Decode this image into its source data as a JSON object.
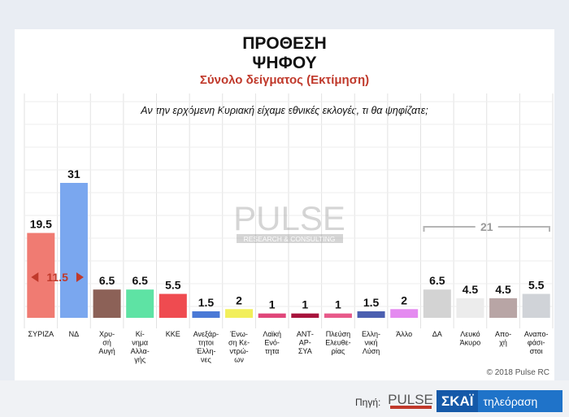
{
  "header": {
    "title_line1": "ΠΡΟΘΕΣΗ",
    "title_line2": "ΨΗΦΟΥ",
    "subtitle": "Σύνολο δείγματος   (Εκτίμηση)",
    "question": "Αν την ερχόμενη Κυριακή είχαμε εθνικές εκλογές, τι θα ψηφίζατε;"
  },
  "watermark": {
    "main": "PULSE",
    "sub": "RESEARCH & CONSULTING"
  },
  "copyright": "© 2018 Pulse RC",
  "footer": {
    "source_label": "Πηγή:",
    "pulse_logo": "PULSE",
    "skai_a": "ΣΚΑΪ",
    "skai_b": "τηλεόραση"
  },
  "chart_data": {
    "type": "bar",
    "categories": [
      [
        "ΣΥΡΙΖΑ"
      ],
      [
        "ΝΔ"
      ],
      [
        "Χρυ-",
        "σή",
        "Αυγή"
      ],
      [
        "Κί-",
        "νημα",
        "Αλλα-",
        "γής"
      ],
      [
        "ΚΚΕ"
      ],
      [
        "Ανεξάρ-",
        "τητοι",
        "Έλλη-",
        "νες"
      ],
      [
        "Ένω-",
        "ση Κε-",
        "ντρώ-",
        "ων"
      ],
      [
        "Λαϊκή",
        "Ενό-",
        "τητα"
      ],
      [
        "ΑΝΤ-",
        "ΑΡ-",
        "ΣΥΑ"
      ],
      [
        "Πλεύση",
        "Ελευθε-",
        "ρίας"
      ],
      [
        "Ελλη-",
        "νική",
        "Λύση"
      ],
      [
        "Άλλο"
      ],
      [
        "ΔΑ"
      ],
      [
        "Λευκό",
        "Άκυρο"
      ],
      [
        "Απο-",
        "χή"
      ],
      [
        "Αναπο-",
        "φάσι-",
        "στοι"
      ]
    ],
    "values": [
      19.5,
      31,
      6.5,
      6.5,
      5.5,
      1.5,
      2,
      1,
      1,
      1,
      1.5,
      2,
      6.5,
      4.5,
      4.5,
      5.5
    ],
    "value_labels": [
      "19.5",
      "31",
      "6.5",
      "6.5",
      "5.5",
      "1.5",
      "2",
      "1",
      "1",
      "1",
      "1.5",
      "2",
      "6.5",
      "4.5",
      "4.5",
      "5.5"
    ],
    "colors": [
      "#f07b72",
      "#7aa7ef",
      "#8c6157",
      "#5ee3a4",
      "#ef4b50",
      "#4a79d6",
      "#f2ef5a",
      "#e0477a",
      "#a8143c",
      "#e85a8a",
      "#4b5fb0",
      "#e48af0",
      "#d3d3d3",
      "#ececec",
      "#b8a5a5",
      "#d0d3d8"
    ],
    "ylim": [
      0,
      34
    ],
    "gap_annotation": {
      "label": "11.5",
      "from": 0,
      "to": 1,
      "color": "#c0392b"
    },
    "bracket_annotation": {
      "label": "21",
      "from": 12,
      "to": 15
    },
    "grid": true
  }
}
